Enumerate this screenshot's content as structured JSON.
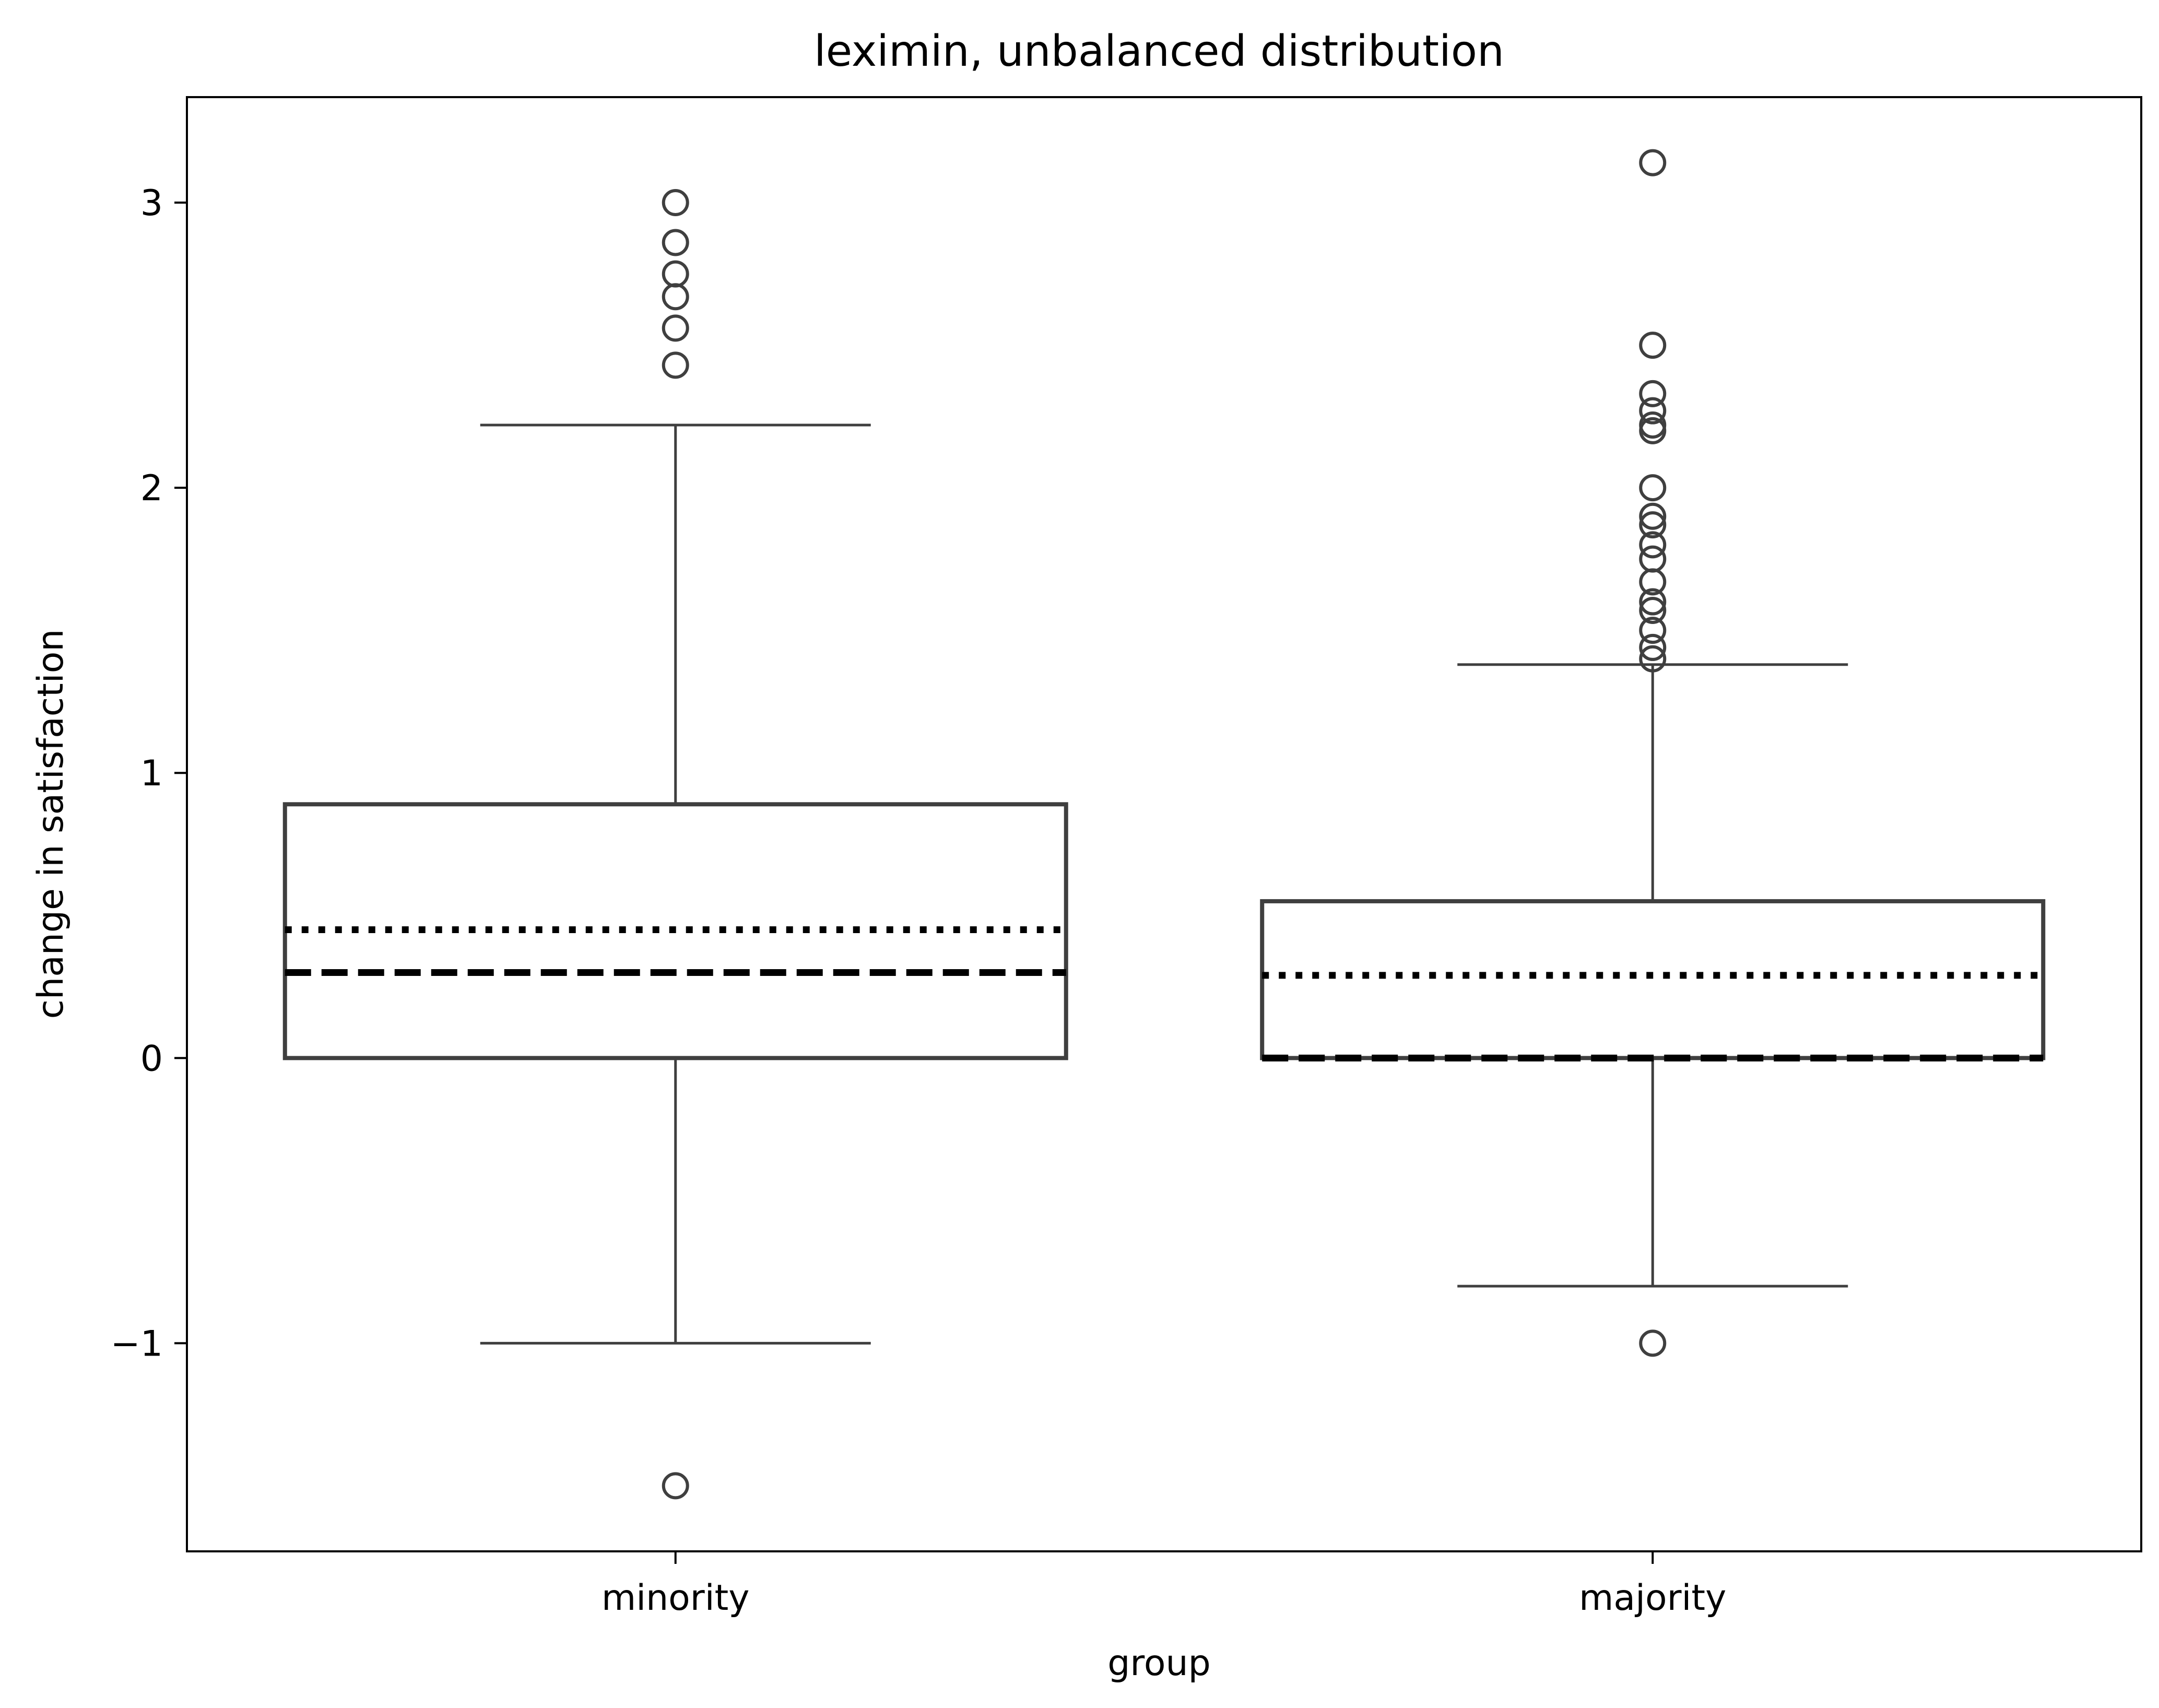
{
  "chart_data": {
    "type": "box",
    "title": "leximin, unbalanced distribution",
    "xlabel": "group",
    "ylabel": "change in satisfaction",
    "categories": [
      "minority",
      "majority"
    ],
    "ylim": [
      -1.73,
      3.37
    ],
    "yticks": [
      -1,
      0,
      1,
      2,
      3
    ],
    "ytick_labels": [
      "−1",
      "0",
      "1",
      "2",
      "3"
    ],
    "grid": false,
    "legend": "none",
    "median_line_style": "dashed",
    "mean_line_style": "dotted",
    "boxes": [
      {
        "name": "minority",
        "q1": 0.0,
        "median": 0.3,
        "mean": 0.45,
        "q3": 0.89,
        "whisker_low": -1.0,
        "whisker_high": 2.22,
        "outliers": [
          3.0,
          2.86,
          2.75,
          2.67,
          2.56,
          2.43,
          -1.5
        ]
      },
      {
        "name": "majority",
        "q1": 0.0,
        "median": 0.0,
        "mean": 0.29,
        "q3": 0.55,
        "whisker_low": -0.8,
        "whisker_high": 1.38,
        "outliers": [
          3.14,
          2.5,
          2.33,
          2.27,
          2.22,
          2.2,
          2.0,
          1.9,
          1.87,
          1.8,
          1.75,
          1.67,
          1.6,
          1.57,
          1.5,
          1.44,
          1.4,
          -1.0
        ]
      }
    ],
    "colors": {
      "box_edge": "#3f3f3f",
      "median_line": "#000000",
      "mean_line": "#000000",
      "axis": "#000000",
      "background": "#ffffff"
    }
  }
}
